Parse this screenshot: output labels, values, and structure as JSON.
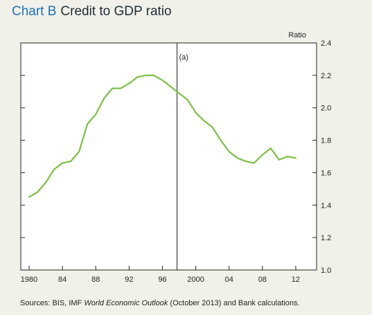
{
  "chart_data": {
    "type": "line",
    "title_label": "Chart B",
    "title": "Credit to GDP ratio",
    "ylabel": "Ratio",
    "ylim": [
      1.0,
      2.4
    ],
    "y_ticks": [
      1.0,
      1.2,
      1.4,
      1.6,
      1.8,
      2.0,
      2.2,
      2.4
    ],
    "y_tick_labels": [
      "1.0",
      "1.2",
      "1.4",
      "1.6",
      "1.8",
      "2.0",
      "2.2",
      "2.4"
    ],
    "xlim": [
      1979,
      2014.5
    ],
    "x_ticks": [
      1980,
      1984,
      1988,
      1992,
      1996,
      2000,
      2004,
      2008,
      2012
    ],
    "x_tick_labels": [
      "1980",
      "84",
      "88",
      "92",
      "96",
      "2000",
      "04",
      "08",
      "12"
    ],
    "marker": {
      "x": 1997.75,
      "label": "(a)"
    },
    "grid": false,
    "series": [
      {
        "color": "#7ac143",
        "x": [
          1980,
          1981,
          1982,
          1983,
          1984,
          1985,
          1986,
          1987,
          1988,
          1989,
          1990,
          1991,
          1992,
          1993,
          1994,
          1995,
          1996,
          1997,
          1998,
          1999,
          2000,
          2001,
          2002,
          2003,
          2004,
          2005,
          2006,
          2007,
          2008,
          2009,
          2010,
          2011,
          2012
        ],
        "y": [
          1.45,
          1.48,
          1.54,
          1.62,
          1.66,
          1.67,
          1.73,
          1.9,
          1.96,
          2.06,
          2.12,
          2.12,
          2.15,
          2.19,
          2.2,
          2.2,
          2.17,
          2.13,
          2.09,
          2.05,
          1.97,
          1.92,
          1.88,
          1.8,
          1.73,
          1.69,
          1.67,
          1.66,
          1.71,
          1.75,
          1.68,
          1.7,
          1.69
        ]
      }
    ],
    "source_prefix": "Sources:  BIS, IMF ",
    "source_italic": "World Economic Outlook",
    "source_suffix": " (October 2013) and Bank calculations."
  }
}
